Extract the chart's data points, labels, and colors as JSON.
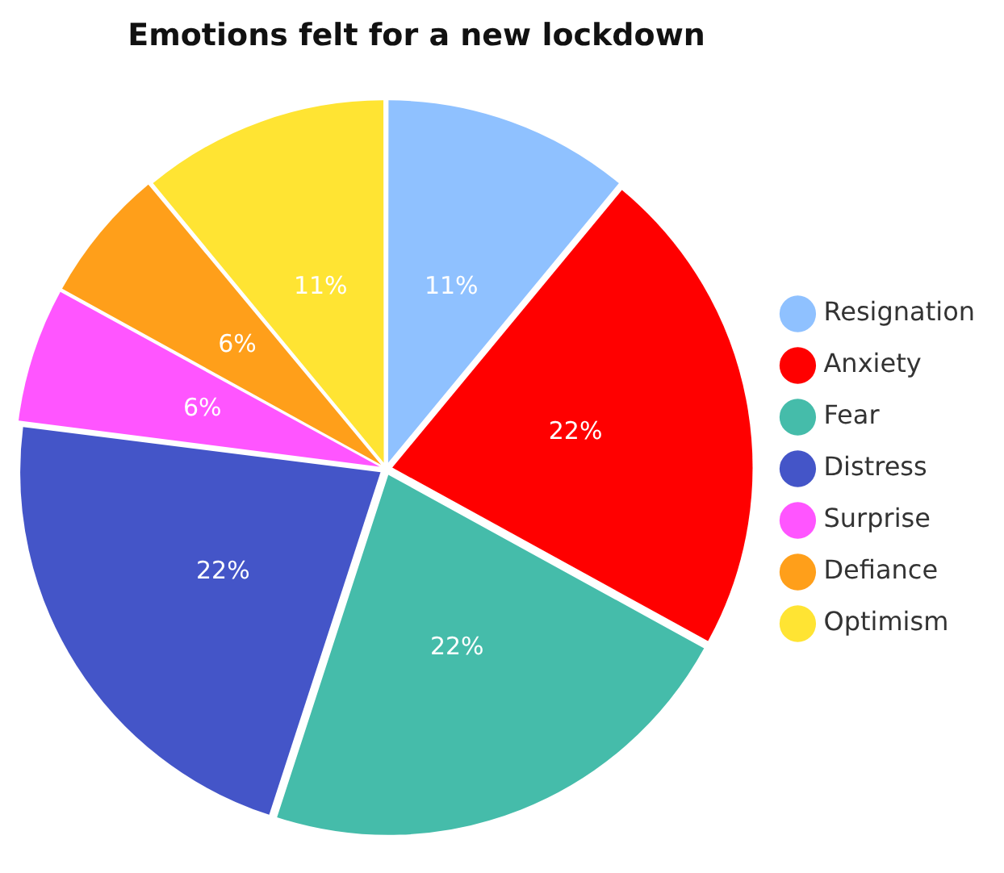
{
  "chart_data": {
    "type": "pie",
    "title": "Emotions felt for a new lockdown",
    "categories": [
      "Resignation",
      "Anxiety",
      "Fear",
      "Distress",
      "Surprise",
      "Defiance",
      "Optimism"
    ],
    "values": [
      11,
      22,
      22,
      22,
      6,
      6,
      11
    ],
    "value_labels": [
      "11%",
      "22%",
      "22%",
      "22%",
      "6%",
      "6%",
      "11%"
    ],
    "colors": [
      "#8fc1ff",
      "#ff0000",
      "#45bcaa",
      "#4455c8",
      "#ff55ff",
      "#ff9f1a",
      "#ffe433"
    ],
    "legend": "right"
  }
}
